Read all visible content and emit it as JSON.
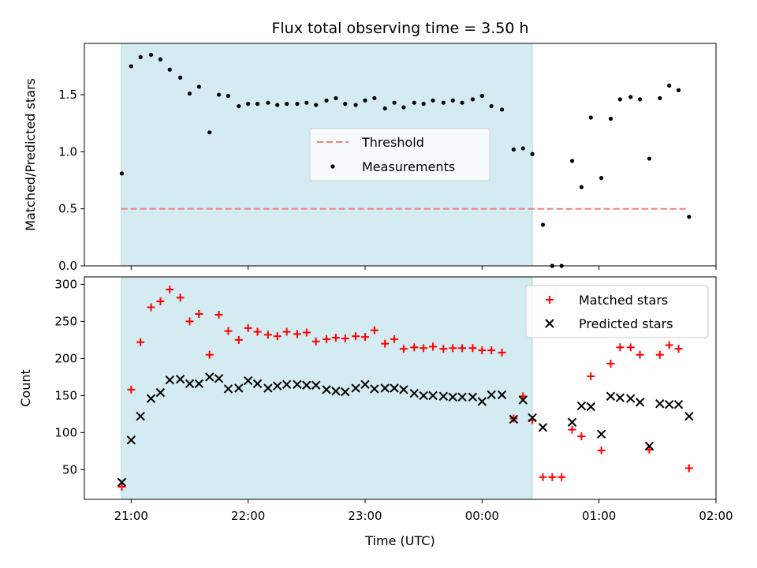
{
  "chart_data": {
    "title": "Flux total observing time = 3.50 h",
    "xlabel": "Time (UTC)",
    "x_ticks": [
      "21:00",
      "22:00",
      "23:00",
      "00:00",
      "01:00",
      "02:00"
    ],
    "x_tick_hours": [
      21,
      22,
      23,
      24,
      25,
      26
    ],
    "xlim": [
      20.6,
      26.0
    ],
    "shaded_x_range": [
      20.915,
      24.43
    ],
    "shaded_color": "#d4ebf1",
    "subplots": [
      {
        "type": "scatter",
        "ylabel": "Matched/Predicted stars",
        "ylim": [
          0,
          1.95
        ],
        "y_ticks": [
          "0.0",
          "0.5",
          "1.0",
          "1.5"
        ],
        "y_tick_values": [
          0,
          0.5,
          1.0,
          1.5
        ],
        "threshold": {
          "name": "Threshold",
          "value": 0.5,
          "x_range": [
            20.915,
            25.75
          ],
          "color": "#f08080"
        },
        "legend_position": "center",
        "series": [
          {
            "name": "Measurements",
            "color": "#000000",
            "points": [
              [
                20.92,
                0.81
              ],
              [
                21.0,
                1.75
              ],
              [
                21.08,
                1.83
              ],
              [
                21.17,
                1.85
              ],
              [
                21.25,
                1.81
              ],
              [
                21.33,
                1.72
              ],
              [
                21.42,
                1.65
              ],
              [
                21.5,
                1.51
              ],
              [
                21.58,
                1.57
              ],
              [
                21.67,
                1.17
              ],
              [
                21.75,
                1.5
              ],
              [
                21.83,
                1.49
              ],
              [
                21.92,
                1.4
              ],
              [
                22.0,
                1.42
              ],
              [
                22.08,
                1.42
              ],
              [
                22.17,
                1.43
              ],
              [
                22.25,
                1.41
              ],
              [
                22.33,
                1.42
              ],
              [
                22.42,
                1.42
              ],
              [
                22.5,
                1.43
              ],
              [
                22.58,
                1.41
              ],
              [
                22.67,
                1.45
              ],
              [
                22.75,
                1.47
              ],
              [
                22.83,
                1.42
              ],
              [
                22.92,
                1.41
              ],
              [
                23.0,
                1.45
              ],
              [
                23.08,
                1.47
              ],
              [
                23.17,
                1.38
              ],
              [
                23.25,
                1.43
              ],
              [
                23.33,
                1.39
              ],
              [
                23.42,
                1.43
              ],
              [
                23.5,
                1.42
              ],
              [
                23.58,
                1.45
              ],
              [
                23.67,
                1.43
              ],
              [
                23.75,
                1.45
              ],
              [
                23.83,
                1.43
              ],
              [
                23.92,
                1.46
              ],
              [
                24.0,
                1.49
              ],
              [
                24.08,
                1.4
              ],
              [
                24.17,
                1.37
              ],
              [
                24.27,
                1.02
              ],
              [
                24.35,
                1.03
              ],
              [
                24.43,
                0.98
              ],
              [
                24.52,
                0.36
              ],
              [
                24.6,
                0.0
              ],
              [
                24.68,
                0.0
              ],
              [
                24.77,
                0.92
              ],
              [
                24.85,
                0.69
              ],
              [
                24.93,
                1.3
              ],
              [
                25.02,
                0.77
              ],
              [
                25.1,
                1.29
              ],
              [
                25.18,
                1.46
              ],
              [
                25.27,
                1.48
              ],
              [
                25.35,
                1.46
              ],
              [
                25.43,
                0.94
              ],
              [
                25.52,
                1.47
              ],
              [
                25.6,
                1.58
              ],
              [
                25.68,
                1.54
              ],
              [
                25.77,
                0.43
              ]
            ]
          }
        ]
      },
      {
        "type": "scatter",
        "ylabel": "Count",
        "ylim": [
          10,
          310
        ],
        "y_ticks": [
          "50",
          "100",
          "150",
          "200",
          "250",
          "300"
        ],
        "y_tick_values": [
          50,
          100,
          150,
          200,
          250,
          300
        ],
        "legend_position": "upper right",
        "series": [
          {
            "name": "Matched stars",
            "marker": "+",
            "color": "#ff0000",
            "points": [
              [
                20.92,
                27
              ],
              [
                21.0,
                158
              ],
              [
                21.08,
                222
              ],
              [
                21.17,
                269
              ],
              [
                21.25,
                277
              ],
              [
                21.33,
                293
              ],
              [
                21.42,
                282
              ],
              [
                21.5,
                250
              ],
              [
                21.58,
                260
              ],
              [
                21.67,
                205
              ],
              [
                21.75,
                259
              ],
              [
                21.83,
                237
              ],
              [
                21.92,
                225
              ],
              [
                22.0,
                241
              ],
              [
                22.08,
                236
              ],
              [
                22.17,
                232
              ],
              [
                22.25,
                230
              ],
              [
                22.33,
                236
              ],
              [
                22.42,
                233
              ],
              [
                22.5,
                235
              ],
              [
                22.58,
                223
              ],
              [
                22.67,
                226
              ],
              [
                22.75,
                228
              ],
              [
                22.83,
                227
              ],
              [
                22.92,
                230
              ],
              [
                23.0,
                229
              ],
              [
                23.08,
                238
              ],
              [
                23.17,
                220
              ],
              [
                23.25,
                226
              ],
              [
                23.33,
                213
              ],
              [
                23.42,
                215
              ],
              [
                23.5,
                214
              ],
              [
                23.58,
                216
              ],
              [
                23.67,
                213
              ],
              [
                23.75,
                214
              ],
              [
                23.83,
                214
              ],
              [
                23.92,
                214
              ],
              [
                24.0,
                211
              ],
              [
                24.08,
                211
              ],
              [
                24.17,
                208
              ],
              [
                24.27,
                119
              ],
              [
                24.35,
                149
              ],
              [
                24.43,
                117
              ],
              [
                24.52,
                40
              ],
              [
                24.6,
                40
              ],
              [
                24.68,
                40
              ],
              [
                24.77,
                104
              ],
              [
                24.85,
                95
              ],
              [
                24.93,
                176
              ],
              [
                25.02,
                76
              ],
              [
                25.1,
                193
              ],
              [
                25.18,
                215
              ],
              [
                25.27,
                215
              ],
              [
                25.35,
                205
              ],
              [
                25.43,
                77
              ],
              [
                25.52,
                205
              ],
              [
                25.6,
                218
              ],
              [
                25.68,
                213
              ],
              [
                25.77,
                52
              ]
            ]
          },
          {
            "name": "Predicted stars",
            "marker": "x",
            "color": "#000000",
            "points": [
              [
                20.92,
                33
              ],
              [
                21.0,
                90
              ],
              [
                21.08,
                122
              ],
              [
                21.17,
                146
              ],
              [
                21.25,
                154
              ],
              [
                21.33,
                171
              ],
              [
                21.42,
                172
              ],
              [
                21.5,
                166
              ],
              [
                21.58,
                166
              ],
              [
                21.67,
                175
              ],
              [
                21.75,
                173
              ],
              [
                21.83,
                159
              ],
              [
                21.92,
                160
              ],
              [
                22.0,
                170
              ],
              [
                22.08,
                166
              ],
              [
                22.17,
                160
              ],
              [
                22.25,
                163
              ],
              [
                22.33,
                165
              ],
              [
                22.42,
                165
              ],
              [
                22.5,
                164
              ],
              [
                22.58,
                164
              ],
              [
                22.67,
                158
              ],
              [
                22.75,
                156
              ],
              [
                22.83,
                155
              ],
              [
                22.92,
                160
              ],
              [
                23.0,
                165
              ],
              [
                23.08,
                159
              ],
              [
                23.17,
                160
              ],
              [
                23.25,
                160
              ],
              [
                23.33,
                158
              ],
              [
                23.42,
                153
              ],
              [
                23.5,
                150
              ],
              [
                23.58,
                150
              ],
              [
                23.67,
                149
              ],
              [
                23.75,
                148
              ],
              [
                23.83,
                148
              ],
              [
                23.92,
                148
              ],
              [
                24.0,
                142
              ],
              [
                24.08,
                151
              ],
              [
                24.17,
                151
              ],
              [
                24.27,
                118
              ],
              [
                24.35,
                144
              ],
              [
                24.43,
                120
              ],
              [
                24.52,
                107
              ],
              [
                24.77,
                114
              ],
              [
                24.85,
                136
              ],
              [
                24.93,
                135
              ],
              [
                25.02,
                98
              ],
              [
                25.1,
                149
              ],
              [
                25.18,
                147
              ],
              [
                25.27,
                146
              ],
              [
                25.35,
                141
              ],
              [
                25.43,
                82
              ],
              [
                25.52,
                139
              ],
              [
                25.6,
                138
              ],
              [
                25.68,
                138
              ],
              [
                25.77,
                122
              ]
            ]
          }
        ]
      }
    ]
  }
}
